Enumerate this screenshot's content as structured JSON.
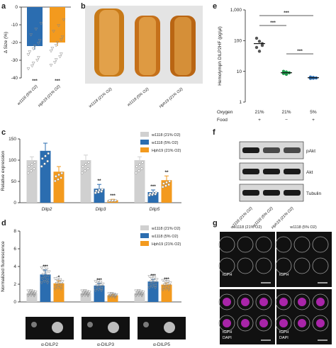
{
  "panel_labels": [
    "a",
    "b",
    "c",
    "d",
    "e",
    "f",
    "g"
  ],
  "colors": {
    "control": "#d0d0d0",
    "hypoxia": "#2b6db0",
    "hph": "#f39a1e",
    "micro_bg": "#111111",
    "magenta": "#d02ad0"
  },
  "legend": [
    {
      "label": "w1118 (21% O2)",
      "color": "#d0d0d0"
    },
    {
      "label": "w1118 (5% O2)",
      "color": "#2b6db0"
    },
    {
      "label": "Hph19 (21% O2)",
      "color": "#f39a1e"
    }
  ],
  "panel_b": {
    "labels": [
      "w1118 (21% O2)",
      "w1118 (5% O2)",
      "Hph19 (21% O2)"
    ]
  },
  "panel_f": {
    "rows": [
      "pAkt",
      "Akt",
      "Tubulin"
    ],
    "lanes": [
      "w1118 (21% O2)",
      "w1118 (5% O2)",
      "Hph19 (21% O2)"
    ]
  },
  "panel_g": {
    "col_titles": [
      "w1118 (21% O2)",
      "w1118 (5% O2)"
    ],
    "cell_labels": [
      "tGPH",
      "tGPH",
      "tGPH\nDAPI",
      "tGPH\nDAPI"
    ]
  },
  "panel_d_images": [
    "α-DILP2",
    "α-DILP3",
    "α-DILP5"
  ],
  "chart_data": [
    {
      "id": "a",
      "type": "bar",
      "ylabel": "Δ Size (%)",
      "ylim": [
        -40,
        0
      ],
      "yticks": [
        0,
        -10,
        -20,
        -30,
        -40
      ],
      "categories": [
        "w1118 (5% O2)",
        "Hph19 (21% O2)"
      ],
      "values": [
        -22,
        -20
      ],
      "errors": [
        2,
        2
      ],
      "significance": [
        "***",
        "***"
      ]
    },
    {
      "id": "c",
      "type": "bar",
      "ylabel": "Relative expression",
      "ylim": [
        0,
        150
      ],
      "yticks": [
        0,
        50,
        100,
        150
      ],
      "categories": [
        "Dilp2",
        "Dilp3",
        "Dilp5"
      ],
      "series": [
        {
          "name": "w1118 (21% O2)",
          "values": [
            100,
            100,
            100
          ],
          "errors": [
            8,
            12,
            8
          ],
          "significance": [
            "",
            "",
            ""
          ]
        },
        {
          "name": "w1118 (5% O2)",
          "values": [
            122,
            33,
            25
          ],
          "errors": [
            18,
            10,
            5
          ],
          "significance": [
            "",
            "**",
            "***"
          ]
        },
        {
          "name": "Hph19 (21% O2)",
          "values": [
            73,
            6,
            53
          ],
          "errors": [
            12,
            2,
            10
          ],
          "significance": [
            "",
            "***",
            "**"
          ]
        }
      ]
    },
    {
      "id": "d",
      "type": "bar",
      "ylabel": "Normalized fluorescence",
      "ylim": [
        0,
        8
      ],
      "yticks": [
        0,
        2,
        4,
        6,
        8
      ],
      "categories": [
        "α-DILP2",
        "α-DILP3",
        "α-DILP5"
      ],
      "series": [
        {
          "name": "w1118 (21% O2)",
          "values": [
            1.0,
            1.0,
            1.0
          ],
          "errors": [
            0.1,
            0.1,
            0.1
          ],
          "significance": [
            "",
            "",
            ""
          ]
        },
        {
          "name": "w1118 (5% O2)",
          "values": [
            3.1,
            1.85,
            2.3
          ],
          "errors": [
            0.5,
            0.25,
            0.25
          ],
          "significance": [
            "***",
            "***",
            "***"
          ]
        },
        {
          "name": "Hph19 (21% O2)",
          "values": [
            2.1,
            0.75,
            1.95
          ],
          "errors": [
            0.3,
            0.1,
            0.2
          ],
          "significance": [
            "*",
            "",
            "***"
          ]
        }
      ]
    },
    {
      "id": "e",
      "type": "scatter",
      "ylabel": "Hemolymph DILP2HF (pg/μl)",
      "yscale": "log",
      "ylim": [
        1,
        1000
      ],
      "yticks": [
        "1",
        "10",
        "100",
        "1,000"
      ],
      "row_labels": [
        "Oxygen",
        "Food"
      ],
      "groups": [
        {
          "oxygen": "21%",
          "food": "+",
          "mean": 80,
          "error": 15,
          "points": [
            120,
            95,
            80,
            60,
            45,
            70
          ]
        },
        {
          "oxygen": "21%",
          "food": "−",
          "mean": 9,
          "error": 0.8,
          "points": [
            10,
            9.5,
            9,
            8.5,
            8
          ]
        },
        {
          "oxygen": "5%",
          "food": "+",
          "mean": 6.2,
          "error": 0.4,
          "points": [
            6.5,
            6.3,
            6.1,
            5.9,
            6.0
          ]
        }
      ],
      "significance": [
        {
          "from": 0,
          "to": 2,
          "label": "***"
        },
        {
          "from": 0,
          "to": 1,
          "label": "***"
        },
        {
          "from": 1,
          "to": 2,
          "label": "***"
        }
      ]
    }
  ]
}
